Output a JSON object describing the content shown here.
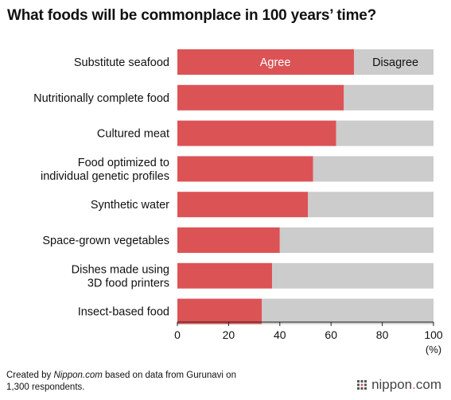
{
  "chart_data": {
    "type": "bar",
    "stacked": true,
    "orientation": "horizontal",
    "title": "What foods will be commonplace in 100 years’ time?",
    "categories": [
      [
        "Substitute seafood"
      ],
      [
        "Nutritionally complete food"
      ],
      [
        "Cultured meat"
      ],
      [
        "Food optimized to",
        "individual genetic profiles"
      ],
      [
        "Synthetic water"
      ],
      [
        "Space-grown vegetables"
      ],
      [
        "Dishes made using",
        "3D food printers"
      ],
      [
        "Insect-based food"
      ]
    ],
    "series": [
      {
        "name": "Agree",
        "color": "#dc5356",
        "values": [
          69,
          65,
          62,
          53,
          51,
          40,
          37,
          33
        ]
      },
      {
        "name": "Disagree",
        "color": "#cccccc",
        "values": [
          31,
          35,
          38,
          47,
          49,
          60,
          63,
          67
        ]
      }
    ],
    "xlim": [
      0,
      100
    ],
    "xticks": [
      0,
      20,
      40,
      60,
      80,
      100
    ],
    "xunit": "(%)"
  },
  "footer": {
    "prefix": "Created by ",
    "source_name": "Nippon.com",
    "suffix": " based on data from Gurunavi on",
    "line2": "1,300 respondents."
  },
  "brand": {
    "name": "nippon",
    "dot": ".",
    "tld": "com"
  }
}
